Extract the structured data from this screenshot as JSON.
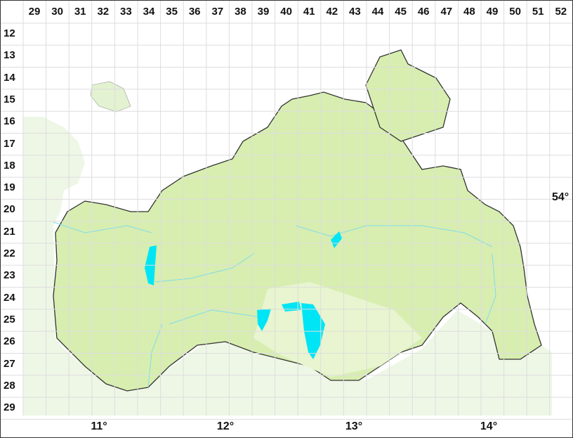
{
  "grid": {
    "columns": [
      "29",
      "30",
      "31",
      "32",
      "33",
      "34",
      "35",
      "36",
      "37",
      "38",
      "39",
      "40",
      "41",
      "42",
      "43",
      "44",
      "45",
      "46",
      "47",
      "48",
      "49",
      "50",
      "51",
      "52"
    ],
    "rows": [
      "12",
      "13",
      "14",
      "15",
      "16",
      "17",
      "18",
      "19",
      "20",
      "21",
      "22",
      "23",
      "24",
      "25",
      "26",
      "27",
      "28",
      "29"
    ]
  },
  "longitude_labels": [
    "11°",
    "12°",
    "13°",
    "14°"
  ],
  "latitude_labels": [
    "54°"
  ],
  "colors": {
    "land": "#d7eeb0",
    "land_pale": "#e8f5d8",
    "outside": "#eef7e6",
    "water": "#00e5f5",
    "rivers": "#7fdcec",
    "border": "#333333",
    "grid": "#dddddd"
  }
}
